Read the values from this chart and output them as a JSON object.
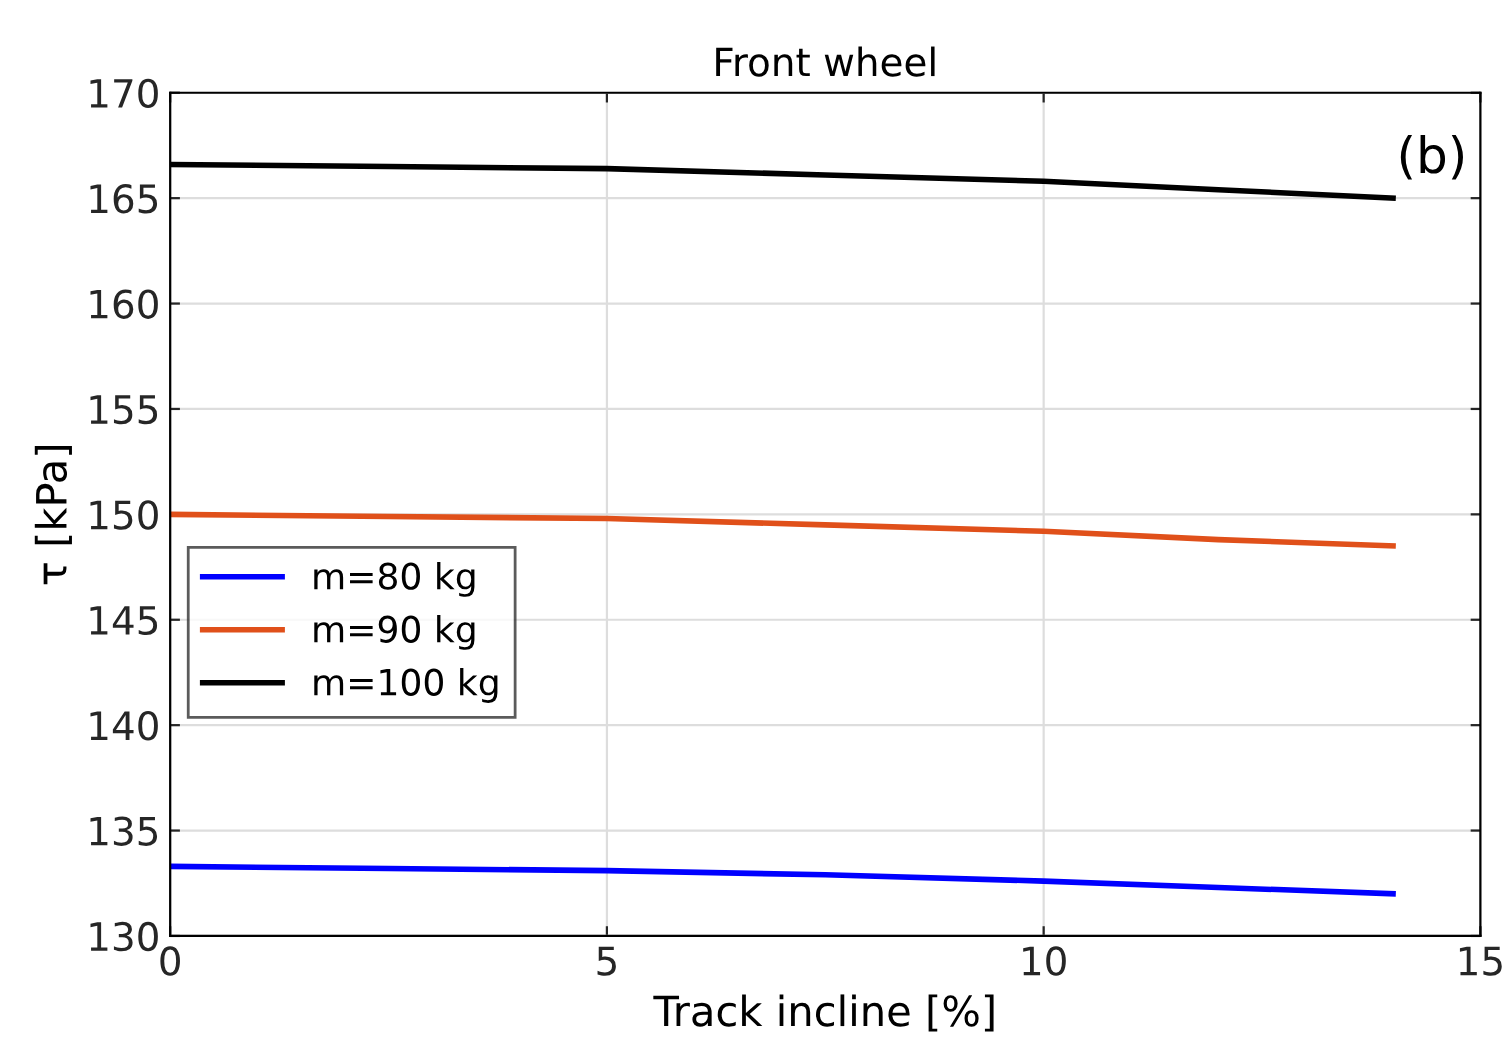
{
  "chart_data": {
    "type": "line",
    "title": "Front wheel",
    "xlabel": "Track incline [%]",
    "ylabel": "τ [kPa]",
    "annotations": [
      "(b)"
    ],
    "x": [
      0,
      2.5,
      5,
      7.5,
      10,
      12,
      14
    ],
    "series": [
      {
        "name": "m=80 kg",
        "color": "#0000ff",
        "values": [
          133.3,
          133.2,
          133.1,
          132.9,
          132.6,
          132.3,
          132.0
        ]
      },
      {
        "name": "m=90 kg",
        "color": "#e0501a",
        "values": [
          150.0,
          149.9,
          149.8,
          149.5,
          149.2,
          148.8,
          148.5
        ]
      },
      {
        "name": "m=100 kg",
        "color": "#000000",
        "values": [
          166.6,
          166.5,
          166.4,
          166.1,
          165.8,
          165.4,
          165.0
        ]
      }
    ],
    "xlim": [
      0,
      15
    ],
    "xticks": [
      0,
      5,
      10,
      15
    ],
    "ylim": [
      130,
      170
    ],
    "yticks": [
      130,
      135,
      140,
      145,
      150,
      155,
      160,
      165,
      170
    ],
    "grid": true,
    "legend": "left",
    "marker": "none",
    "line_style": "solid"
  }
}
